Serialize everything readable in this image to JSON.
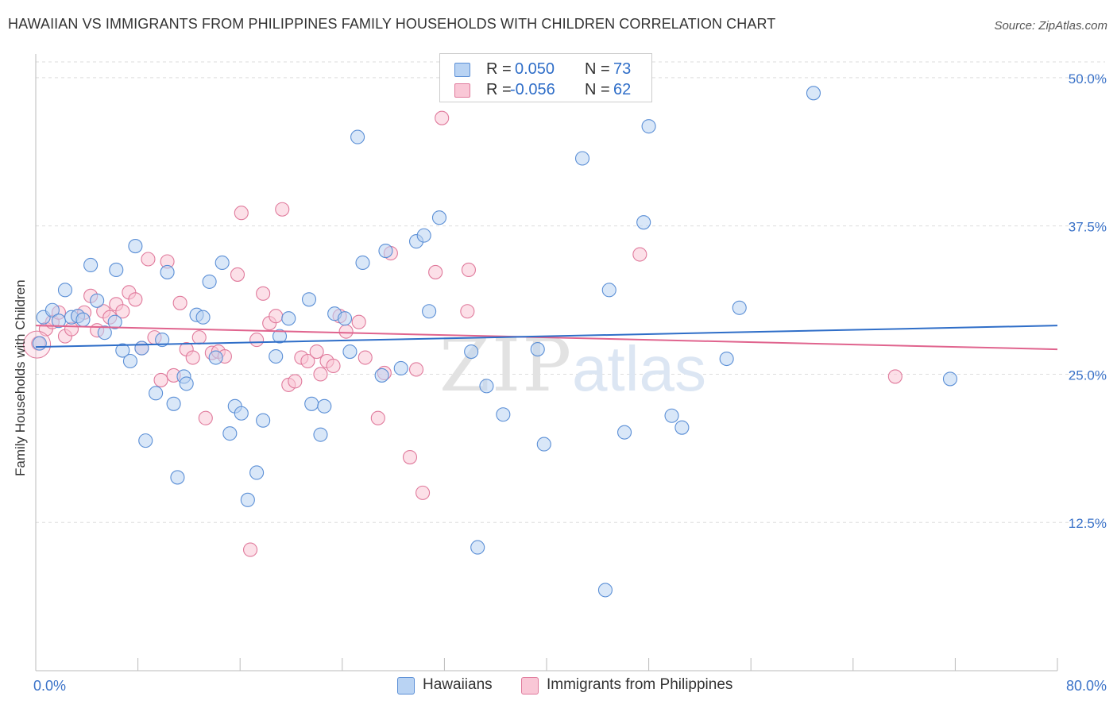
{
  "header": {
    "title": "HAWAIIAN VS IMMIGRANTS FROM PHILIPPINES FAMILY HOUSEHOLDS WITH CHILDREN CORRELATION CHART",
    "source": "Source: ZipAtlas.com"
  },
  "legend": {
    "r_label": "R =",
    "n_label": "N =",
    "series": [
      {
        "name": "Hawaiians",
        "r": "0.050",
        "n": "73",
        "fill": "#b9d3f3",
        "stroke": "#5b8fd6"
      },
      {
        "name": "Immigrants from Philippines",
        "r": "-0.056",
        "n": "62",
        "fill": "#f9c7d6",
        "stroke": "#e07a9c"
      }
    ]
  },
  "watermark": {
    "zip": "ZIP",
    "atlas": "atlas"
  },
  "colors": {
    "blue_line": "#2f6ec8",
    "pink_line": "#e0648e",
    "axis_text": "#3a72c8",
    "grid": "#dddddd"
  },
  "chart_data": {
    "type": "scatter",
    "title": "HAWAIIAN VS IMMIGRANTS FROM PHILIPPINES FAMILY HOUSEHOLDS WITH CHILDREN CORRELATION CHART",
    "xlabel": "",
    "ylabel": "Family Households with Children",
    "xlim": [
      0,
      80
    ],
    "ylim": [
      0,
      52
    ],
    "x_tick_labels": [
      "0.0%",
      "80.0%"
    ],
    "y_ticks": [
      12.5,
      25.0,
      37.5,
      50.0
    ],
    "y_tick_labels": [
      "12.5%",
      "25.0%",
      "37.5%",
      "50.0%"
    ],
    "grid": true,
    "legend_position": "top-center",
    "series": [
      {
        "name": "Hawaiians",
        "trend": {
          "x": [
            0,
            80
          ],
          "y": [
            27.3,
            29.1
          ]
        },
        "points": [
          {
            "x": 0.6,
            "y": 29.8
          },
          {
            "x": 1.3,
            "y": 30.4
          },
          {
            "x": 1.8,
            "y": 29.5
          },
          {
            "x": 2.3,
            "y": 32.1
          },
          {
            "x": 2.8,
            "y": 29.8
          },
          {
            "x": 3.3,
            "y": 29.9
          },
          {
            "x": 3.7,
            "y": 29.6
          },
          {
            "x": 4.3,
            "y": 34.2
          },
          {
            "x": 4.8,
            "y": 31.2
          },
          {
            "x": 5.4,
            "y": 28.5
          },
          {
            "x": 6.2,
            "y": 29.4
          },
          {
            "x": 6.3,
            "y": 33.8
          },
          {
            "x": 6.8,
            "y": 27.0
          },
          {
            "x": 7.4,
            "y": 26.1
          },
          {
            "x": 7.8,
            "y": 35.8
          },
          {
            "x": 8.3,
            "y": 27.2
          },
          {
            "x": 8.6,
            "y": 19.4
          },
          {
            "x": 9.4,
            "y": 23.4
          },
          {
            "x": 9.9,
            "y": 27.9
          },
          {
            "x": 10.3,
            "y": 33.6
          },
          {
            "x": 10.8,
            "y": 22.5
          },
          {
            "x": 11.1,
            "y": 16.3
          },
          {
            "x": 11.6,
            "y": 24.8
          },
          {
            "x": 11.8,
            "y": 24.2
          },
          {
            "x": 12.6,
            "y": 30.0
          },
          {
            "x": 13.1,
            "y": 29.8
          },
          {
            "x": 13.6,
            "y": 32.8
          },
          {
            "x": 14.1,
            "y": 26.4
          },
          {
            "x": 14.6,
            "y": 34.4
          },
          {
            "x": 15.2,
            "y": 20.0
          },
          {
            "x": 15.6,
            "y": 22.3
          },
          {
            "x": 16.1,
            "y": 21.7
          },
          {
            "x": 16.6,
            "y": 14.4
          },
          {
            "x": 17.3,
            "y": 16.7
          },
          {
            "x": 17.8,
            "y": 21.1
          },
          {
            "x": 18.8,
            "y": 26.5
          },
          {
            "x": 19.1,
            "y": 28.2
          },
          {
            "x": 19.8,
            "y": 29.7
          },
          {
            "x": 21.4,
            "y": 31.3
          },
          {
            "x": 21.6,
            "y": 22.5
          },
          {
            "x": 22.3,
            "y": 19.9
          },
          {
            "x": 22.6,
            "y": 22.3
          },
          {
            "x": 23.4,
            "y": 30.1
          },
          {
            "x": 24.2,
            "y": 29.7
          },
          {
            "x": 24.6,
            "y": 26.9
          },
          {
            "x": 25.2,
            "y": 45.0
          },
          {
            "x": 25.6,
            "y": 34.4
          },
          {
            "x": 27.1,
            "y": 24.9
          },
          {
            "x": 27.4,
            "y": 35.4
          },
          {
            "x": 28.6,
            "y": 25.5
          },
          {
            "x": 29.8,
            "y": 36.2
          },
          {
            "x": 30.4,
            "y": 36.7
          },
          {
            "x": 30.8,
            "y": 30.3
          },
          {
            "x": 31.6,
            "y": 38.2
          },
          {
            "x": 34.1,
            "y": 26.9
          },
          {
            "x": 34.6,
            "y": 10.4
          },
          {
            "x": 35.3,
            "y": 24.0
          },
          {
            "x": 36.6,
            "y": 21.6
          },
          {
            "x": 39.3,
            "y": 27.1
          },
          {
            "x": 39.8,
            "y": 19.1
          },
          {
            "x": 42.8,
            "y": 43.2
          },
          {
            "x": 44.6,
            "y": 6.8
          },
          {
            "x": 44.9,
            "y": 32.1
          },
          {
            "x": 46.1,
            "y": 20.1
          },
          {
            "x": 47.6,
            "y": 37.8
          },
          {
            "x": 48.0,
            "y": 45.9
          },
          {
            "x": 49.8,
            "y": 21.5
          },
          {
            "x": 50.6,
            "y": 20.5
          },
          {
            "x": 54.1,
            "y": 26.3
          },
          {
            "x": 55.1,
            "y": 30.6
          },
          {
            "x": 60.9,
            "y": 48.7
          },
          {
            "x": 71.6,
            "y": 24.6
          },
          {
            "x": 0.3,
            "y": 27.6
          }
        ]
      },
      {
        "name": "Immigrants from Philippines",
        "trend": {
          "x": [
            0,
            80
          ],
          "y": [
            29.1,
            27.1
          ]
        },
        "points": [
          {
            "x": 0.2,
            "y": 27.6
          },
          {
            "x": 0.8,
            "y": 28.8
          },
          {
            "x": 1.3,
            "y": 29.4
          },
          {
            "x": 1.8,
            "y": 30.2
          },
          {
            "x": 2.3,
            "y": 28.2
          },
          {
            "x": 2.8,
            "y": 28.8
          },
          {
            "x": 3.3,
            "y": 29.9
          },
          {
            "x": 3.8,
            "y": 30.2
          },
          {
            "x": 4.3,
            "y": 31.6
          },
          {
            "x": 4.8,
            "y": 28.7
          },
          {
            "x": 5.3,
            "y": 30.3
          },
          {
            "x": 5.8,
            "y": 29.8
          },
          {
            "x": 6.3,
            "y": 30.9
          },
          {
            "x": 6.8,
            "y": 30.3
          },
          {
            "x": 7.3,
            "y": 31.9
          },
          {
            "x": 7.8,
            "y": 31.3
          },
          {
            "x": 8.3,
            "y": 27.2
          },
          {
            "x": 8.8,
            "y": 34.7
          },
          {
            "x": 9.3,
            "y": 28.1
          },
          {
            "x": 9.8,
            "y": 24.5
          },
          {
            "x": 10.3,
            "y": 34.5
          },
          {
            "x": 10.8,
            "y": 24.9
          },
          {
            "x": 11.3,
            "y": 31.0
          },
          {
            "x": 11.8,
            "y": 27.1
          },
          {
            "x": 12.3,
            "y": 26.4
          },
          {
            "x": 12.8,
            "y": 28.1
          },
          {
            "x": 13.3,
            "y": 21.3
          },
          {
            "x": 13.8,
            "y": 26.8
          },
          {
            "x": 14.3,
            "y": 26.9
          },
          {
            "x": 14.8,
            "y": 26.5
          },
          {
            "x": 15.8,
            "y": 33.4
          },
          {
            "x": 16.1,
            "y": 38.6
          },
          {
            "x": 16.8,
            "y": 10.2
          },
          {
            "x": 17.3,
            "y": 27.9
          },
          {
            "x": 17.8,
            "y": 31.8
          },
          {
            "x": 18.3,
            "y": 29.3
          },
          {
            "x": 18.8,
            "y": 29.9
          },
          {
            "x": 19.3,
            "y": 38.9
          },
          {
            "x": 19.8,
            "y": 24.1
          },
          {
            "x": 20.3,
            "y": 24.4
          },
          {
            "x": 20.8,
            "y": 26.4
          },
          {
            "x": 21.3,
            "y": 26.1
          },
          {
            "x": 22.0,
            "y": 26.9
          },
          {
            "x": 22.3,
            "y": 25.0
          },
          {
            "x": 22.8,
            "y": 26.1
          },
          {
            "x": 23.3,
            "y": 25.7
          },
          {
            "x": 23.8,
            "y": 29.9
          },
          {
            "x": 24.3,
            "y": 28.6
          },
          {
            "x": 25.3,
            "y": 29.4
          },
          {
            "x": 25.8,
            "y": 26.4
          },
          {
            "x": 26.8,
            "y": 21.3
          },
          {
            "x": 27.3,
            "y": 25.1
          },
          {
            "x": 27.8,
            "y": 35.2
          },
          {
            "x": 29.3,
            "y": 18.0
          },
          {
            "x": 29.8,
            "y": 25.4
          },
          {
            "x": 30.3,
            "y": 15.0
          },
          {
            "x": 31.3,
            "y": 33.6
          },
          {
            "x": 31.8,
            "y": 46.6
          },
          {
            "x": 33.8,
            "y": 30.3
          },
          {
            "x": 33.9,
            "y": 33.8
          },
          {
            "x": 47.3,
            "y": 35.1
          },
          {
            "x": 67.3,
            "y": 24.8
          }
        ]
      }
    ]
  }
}
